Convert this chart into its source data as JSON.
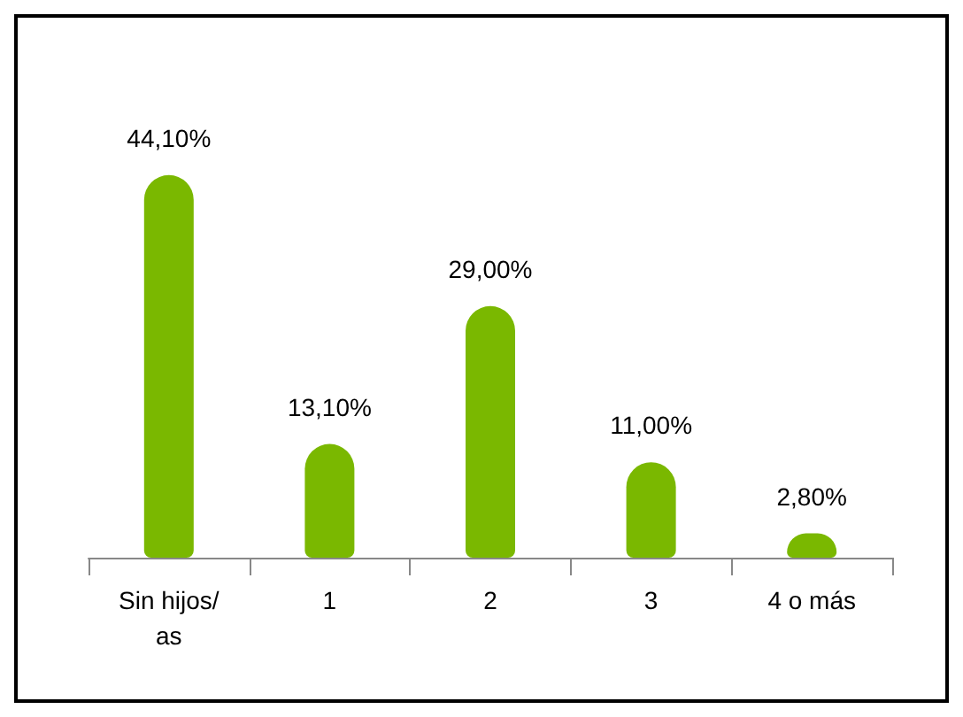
{
  "chart_data": {
    "type": "bar",
    "categories": [
      "Sin hijos/as",
      "1",
      "2",
      "3",
      "4 o más"
    ],
    "values": [
      44.1,
      13.1,
      29.0,
      11.0,
      2.8
    ],
    "value_labels": [
      "44,10%",
      "13,10%",
      "29,00%",
      "11,00%",
      "2,80%"
    ],
    "color": "#7ab800"
  }
}
